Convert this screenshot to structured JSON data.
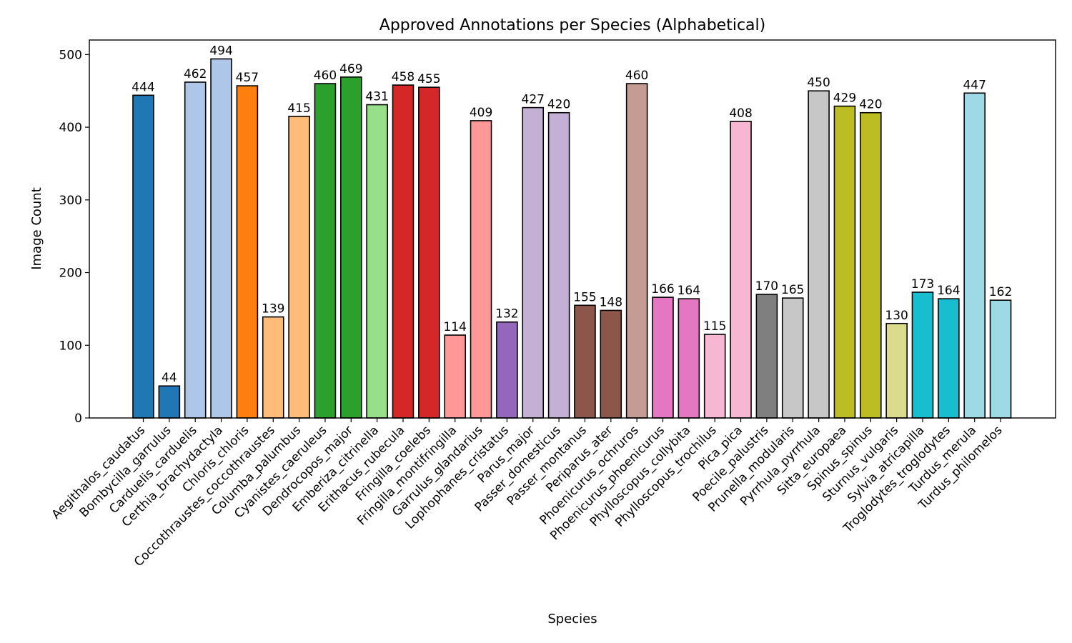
{
  "chart_data": {
    "type": "bar",
    "title": "Approved Annotations per Species (Alphabetical)",
    "xlabel": "Species",
    "ylabel": "Image Count",
    "ylim": [
      0,
      520
    ],
    "yticks": [
      0,
      100,
      200,
      300,
      400,
      500
    ],
    "grid": false,
    "categories": [
      "Aegithalos_caudatus",
      "Bombycilla_garrulus",
      "Carduelis_carduelis",
      "Certhia_brachydactyla",
      "Chloris_chloris",
      "Coccothraustes_coccothraustes",
      "Columba_palumbus",
      "Cyanistes_caeruleus",
      "Dendrocopos_major",
      "Emberiza_citrinella",
      "Erithacus_rubecula",
      "Fringilla_coelebs",
      "Fringilla_montifringilla",
      "Garrulus_glandarius",
      "Lophophanes_cristatus",
      "Parus_major",
      "Passer_domesticus",
      "Passer_montanus",
      "Periparus_ater",
      "Phoenicurus_ochruros",
      "Phoenicurus_phoenicurus",
      "Phylloscopus_collybita",
      "Phylloscopus_trochilus",
      "Pica_pica",
      "Poecile_palustris",
      "Prunella_modularis",
      "Pyrrhula_pyrrhula",
      "Sitta_europaea",
      "Spinus_spinus",
      "Sturnus_vulgaris",
      "Sylvia_atricapilla",
      "Troglodytes_troglodytes",
      "Turdus_merula",
      "Turdus_philomelos"
    ],
    "values": [
      444,
      44,
      462,
      494,
      457,
      139,
      415,
      460,
      469,
      431,
      458,
      455,
      114,
      409,
      132,
      427,
      420,
      155,
      148,
      460,
      166,
      164,
      115,
      408,
      170,
      165,
      450,
      429,
      420,
      130,
      173,
      164,
      447,
      162
    ],
    "colors": [
      "#1f77b4",
      "#1f77b4",
      "#aec7e8",
      "#aec7e8",
      "#ff7f0e",
      "#ffbb78",
      "#ffbb78",
      "#2ca02c",
      "#2ca02c",
      "#98df8a",
      "#d62728",
      "#d62728",
      "#ff9896",
      "#ff9896",
      "#9467bd",
      "#c5b0d5",
      "#c5b0d5",
      "#8c564b",
      "#8c564b",
      "#c49c94",
      "#e377c2",
      "#e377c2",
      "#f7b6d2",
      "#f7b6d2",
      "#7f7f7f",
      "#c7c7c7",
      "#c7c7c7",
      "#bcbd22",
      "#bcbd22",
      "#dbdb8d",
      "#17becf",
      "#17becf",
      "#9edae5",
      "#9edae5"
    ]
  }
}
